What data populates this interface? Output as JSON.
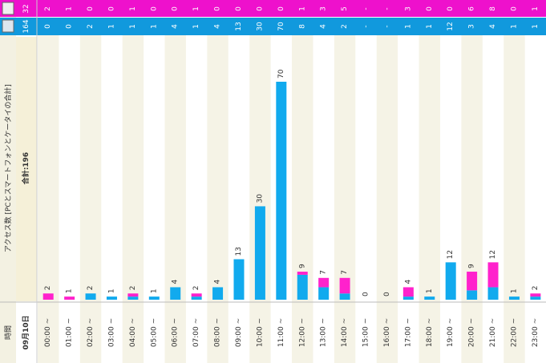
{
  "header": {
    "icon_label": "□",
    "mobile_total": "32",
    "pc_total": "164"
  },
  "axis_title": "アクセス数 [PCとスマートフォンとケータイの合計]",
  "total_label": "合計:196",
  "time_header": "時間",
  "date_label": "09月10日",
  "colors": {
    "mobile": "#ff22cc",
    "pc": "#11aaee",
    "header_mobile": "#ee11cc",
    "header_pc": "#1199dd",
    "alt_column": "#f5f3e6",
    "label_column": "#f3f1e2"
  },
  "chart_data": {
    "type": "bar",
    "orientation": "vertical-stacked",
    "categories": [
      "00:00 ~",
      "01:00 ~",
      "02:00 ~",
      "03:00 ~",
      "04:00 ~",
      "05:00 ~",
      "06:00 ~",
      "07:00 ~",
      "08:00 ~",
      "09:00 ~",
      "10:00 ~",
      "11:00 ~",
      "12:00 ~",
      "13:00 ~",
      "14:00 ~",
      "15:00 ~",
      "16:00 ~",
      "17:00 ~",
      "18:00 ~",
      "19:00 ~",
      "20:00 ~",
      "21:00 ~",
      "22:00 ~",
      "23:00 ~"
    ],
    "totals": [
      "2",
      "1",
      "2",
      "1",
      "2",
      "1",
      "4",
      "2",
      "4",
      "13",
      "30",
      "70",
      "9",
      "7",
      "7",
      "0",
      "0",
      "4",
      "1",
      "12",
      "9",
      "12",
      "1",
      "2"
    ],
    "series": [
      {
        "key": "pc",
        "values": [
          0,
          0,
          2,
          1,
          1,
          1,
          4,
          1,
          4,
          13,
          30,
          70,
          8,
          4,
          2,
          0,
          0,
          1,
          1,
          12,
          3,
          4,
          1,
          1
        ],
        "cells": [
          "0",
          "0",
          "2",
          "1",
          "1",
          "1",
          "4",
          "1",
          "4",
          "13",
          "30",
          "70",
          "8",
          "4",
          "2",
          "-",
          "-",
          "1",
          "1",
          "12",
          "3",
          "4",
          "1",
          "1"
        ]
      },
      {
        "key": "mobile",
        "values": [
          2,
          1,
          0,
          0,
          1,
          0,
          0,
          1,
          0,
          0,
          0,
          0,
          1,
          3,
          5,
          0,
          0,
          3,
          0,
          0,
          6,
          8,
          0,
          1
        ],
        "cells": [
          "2",
          "1",
          "0",
          "0",
          "1",
          "0",
          "0",
          "1",
          "0",
          "0",
          "0",
          "0",
          "1",
          "3",
          "5",
          "-",
          "-",
          "3",
          "0",
          "0",
          "6",
          "8",
          "0",
          "1"
        ]
      }
    ],
    "ylim": [
      0,
      70
    ]
  }
}
